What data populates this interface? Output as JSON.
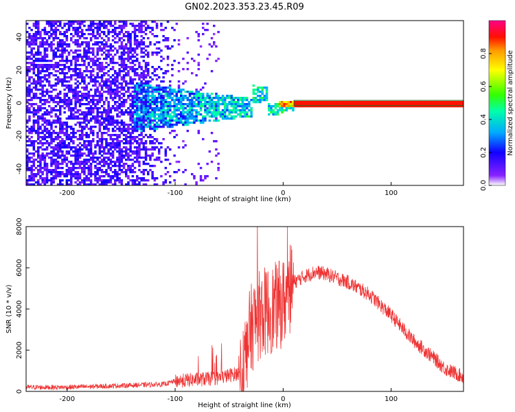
{
  "chart_data": [
    {
      "type": "heatmap",
      "title": "GN02.2023.353.23.45.R09",
      "xlabel": "Height of straight line (km)",
      "ylabel": "Frequency (Hz)",
      "xlim": [
        -238,
        167
      ],
      "ylim": [
        -50,
        50
      ],
      "xticks": [
        -200,
        -100,
        0,
        100
      ],
      "xtick_labels": [
        "-200",
        "-100",
        "0",
        "100"
      ],
      "yticks": [
        -40,
        -20,
        0,
        20,
        40
      ],
      "ytick_labels": [
        "-40",
        "-20",
        "0",
        "20",
        "40"
      ],
      "colorbar": {
        "label": "Normalized spectral amplitude",
        "range": [
          0,
          1
        ],
        "ticks": [
          0.0,
          0.2,
          0.4,
          0.6,
          0.8
        ],
        "tick_labels": [
          "0.0",
          "0.2",
          "0.4",
          "0.6",
          "0.8"
        ]
      },
      "features": {
        "diffuse_noise_region_x": [
          -238,
          -100
        ],
        "diffuse_noise_amplitude": 0.15,
        "converging_band_x": [
          -140,
          10
        ],
        "converging_band_halfwidth_hz": [
          15,
          2
        ],
        "converging_band_amplitude": 0.3,
        "carrier_line_x": [
          10,
          167
        ],
        "carrier_frequency_hz": 0,
        "carrier_amplitude": 0.9
      }
    },
    {
      "type": "line",
      "xlabel": "Height of straight line (km)",
      "ylabel": "SNR (10 * v/v)",
      "xlim": [
        -238,
        167
      ],
      "ylim": [
        0,
        8000
      ],
      "xticks": [
        -200,
        -100,
        0,
        100
      ],
      "xtick_labels": [
        "-200",
        "-100",
        "0",
        "100"
      ],
      "yticks": [
        0,
        2000,
        4000,
        6000,
        8000
      ],
      "ytick_labels": [
        "0",
        "2000",
        "4000",
        "6000",
        "8000"
      ],
      "series": [
        {
          "name": "SNR",
          "color": "#ee3333",
          "envelope": {
            "x": [
              -238,
              -200,
              -150,
              -110,
              -100,
              -60,
              -40,
              -35,
              -30,
              -25,
              -20,
              -10,
              0,
              10,
              20,
              30,
              40,
              60,
              80,
              100,
              120,
              140,
              150,
              167
            ],
            "y": [
              200,
              200,
              280,
              350,
              500,
              650,
              900,
              1800,
              3000,
              3500,
              3800,
              4000,
              4300,
              5300,
              5600,
              5800,
              5700,
              5300,
              4700,
              3700,
              2500,
              1600,
              1100,
              700
            ]
          }
        }
      ]
    }
  ]
}
